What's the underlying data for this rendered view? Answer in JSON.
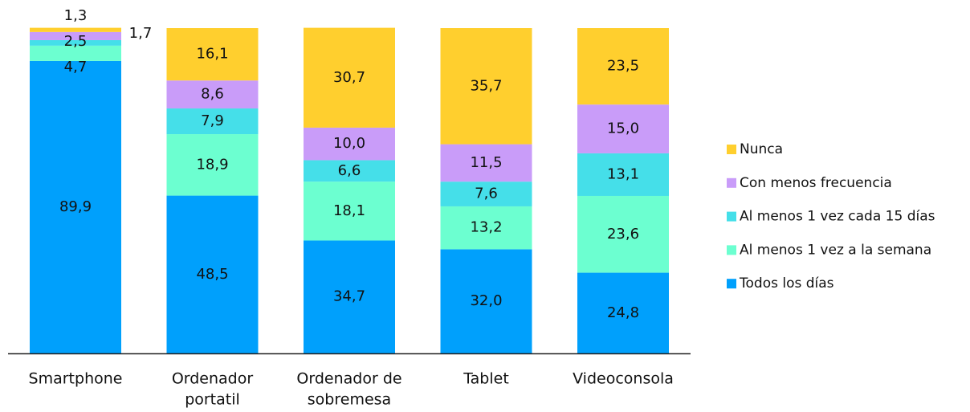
{
  "chart_data": {
    "type": "stacked_bar",
    "categories": [
      [
        "Smartphone"
      ],
      [
        "Ordenador",
        "portatil"
      ],
      [
        "Ordenador de",
        "sobremesa"
      ],
      [
        "Tablet"
      ],
      [
        "Videoconsola"
      ]
    ],
    "ylim": [
      0,
      100
    ],
    "legend": "right",
    "series": [
      {
        "name": "Todos los días",
        "color": "#00a0fc",
        "values": [
          89.9,
          48.5,
          34.7,
          32.0,
          24.8
        ],
        "value_labels": [
          "89,9",
          "48,5",
          "34,7",
          "32,0",
          "24,8"
        ]
      },
      {
        "name": "Al menos 1 vez a la semana",
        "color": "#6cffd0",
        "values": [
          4.7,
          18.9,
          18.1,
          13.2,
          23.6
        ],
        "value_labels": [
          "4,7",
          "18,9",
          "18,1",
          "13,2",
          "23,6"
        ]
      },
      {
        "name": "Al menos 1 vez cada 15 días",
        "color": "#45dfe9",
        "values": [
          1.7,
          7.9,
          6.6,
          7.6,
          13.1
        ],
        "value_labels": [
          "1,7",
          "7,9",
          "6,6",
          "7,6",
          "13,1"
        ]
      },
      {
        "name": "Con menos frecuencia",
        "color": "#c99cf9",
        "values": [
          2.5,
          8.6,
          10.0,
          11.5,
          15.0
        ],
        "value_labels": [
          "2,5",
          "8,6",
          "10,0",
          "11,5",
          "15,0"
        ]
      },
      {
        "name": "Nunca",
        "color": "#ffcf2e",
        "values": [
          1.3,
          16.1,
          30.7,
          35.7,
          23.5
        ],
        "value_labels": [
          "1,3",
          "16,1",
          "30,7",
          "35,7",
          "23,5"
        ]
      }
    ]
  }
}
